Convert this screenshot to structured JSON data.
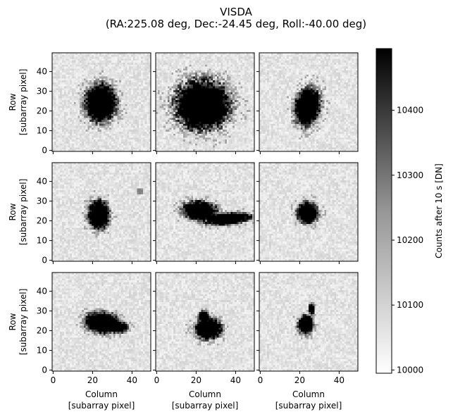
{
  "chart_data": {
    "type": "heatmap",
    "title": "VISDA",
    "subtitle": "(RA:225.08 deg, Dec:-24.45 deg, Roll:-40.00 deg)",
    "grid": false,
    "layout": "3x3 grid of image panels",
    "xlabel": [
      "Column",
      "[subarray pixel]"
    ],
    "ylabel": [
      "Row",
      "[subarray pixel]"
    ],
    "x_ticks": [
      0,
      20,
      40
    ],
    "y_ticks": [
      0,
      10,
      20,
      30,
      40
    ],
    "xlim": [
      -0.5,
      49.5
    ],
    "ylim": [
      -0.5,
      49.5
    ],
    "colormap": "Greys",
    "colorbar": {
      "label": "Counts after 10 s [DN]",
      "vmin": 9995,
      "vmax": 10495,
      "ticks": [
        10000,
        10100,
        10200,
        10300,
        10400
      ]
    },
    "panels": [
      {
        "blobs": [
          {
            "cx": 24,
            "cy": 24,
            "rx": 8,
            "ry": 10,
            "theta": 0,
            "rough": 0.16
          }
        ]
      },
      {
        "blobs": [
          {
            "cx": 23,
            "cy": 23,
            "rx": 14,
            "ry": 13,
            "theta": 0,
            "rough": 0.2
          },
          {
            "cx": 30,
            "cy": 20,
            "rx": 6,
            "ry": 5,
            "theta": 0,
            "rough": 0.2
          }
        ]
      },
      {
        "blobs": [
          {
            "cx": 24,
            "cy": 22,
            "rx": 6.5,
            "ry": 10,
            "theta": -0.2,
            "rough": 0.16
          }
        ]
      },
      {
        "blobs": [
          {
            "cx": 23,
            "cy": 23,
            "rx": 5.5,
            "ry": 7.5,
            "theta": 0,
            "rough": 0.16
          },
          {
            "cx": 44,
            "cy": 35,
            "rx": 1.6,
            "ry": 1.6,
            "theta": 0,
            "rough": 0.05,
            "level": 0.5
          }
        ]
      },
      {
        "blobs": [
          {
            "cx": 22,
            "cy": 25,
            "rx": 9,
            "ry": 5,
            "theta": -0.1,
            "rough": 0.15
          },
          {
            "cx": 36,
            "cy": 21,
            "rx": 12,
            "ry": 3,
            "theta": 0.1,
            "rough": 0.15
          }
        ]
      },
      {
        "blobs": [
          {
            "cx": 24,
            "cy": 24,
            "rx": 5.5,
            "ry": 5.5,
            "theta": 0,
            "rough": 0.14
          }
        ]
      },
      {
        "blobs": [
          {
            "cx": 25,
            "cy": 24,
            "rx": 9,
            "ry": 5.5,
            "theta": -0.12,
            "rough": 0.14
          },
          {
            "cx": 32,
            "cy": 22,
            "rx": 6,
            "ry": 3,
            "theta": -0.1,
            "rough": 0.14
          }
        ]
      },
      {
        "blobs": [
          {
            "cx": 26,
            "cy": 21,
            "rx": 7,
            "ry": 5.5,
            "theta": 0,
            "rough": 0.16
          },
          {
            "cx": 24,
            "cy": 27,
            "rx": 3,
            "ry": 3,
            "theta": 0,
            "rough": 0.16
          }
        ]
      },
      {
        "blobs": [
          {
            "cx": 23,
            "cy": 23,
            "rx": 4,
            "ry": 5,
            "theta": 0,
            "rough": 0.16
          },
          {
            "cx": 26,
            "cy": 31,
            "rx": 1.5,
            "ry": 3,
            "theta": 0,
            "rough": 0.1
          }
        ]
      }
    ]
  }
}
